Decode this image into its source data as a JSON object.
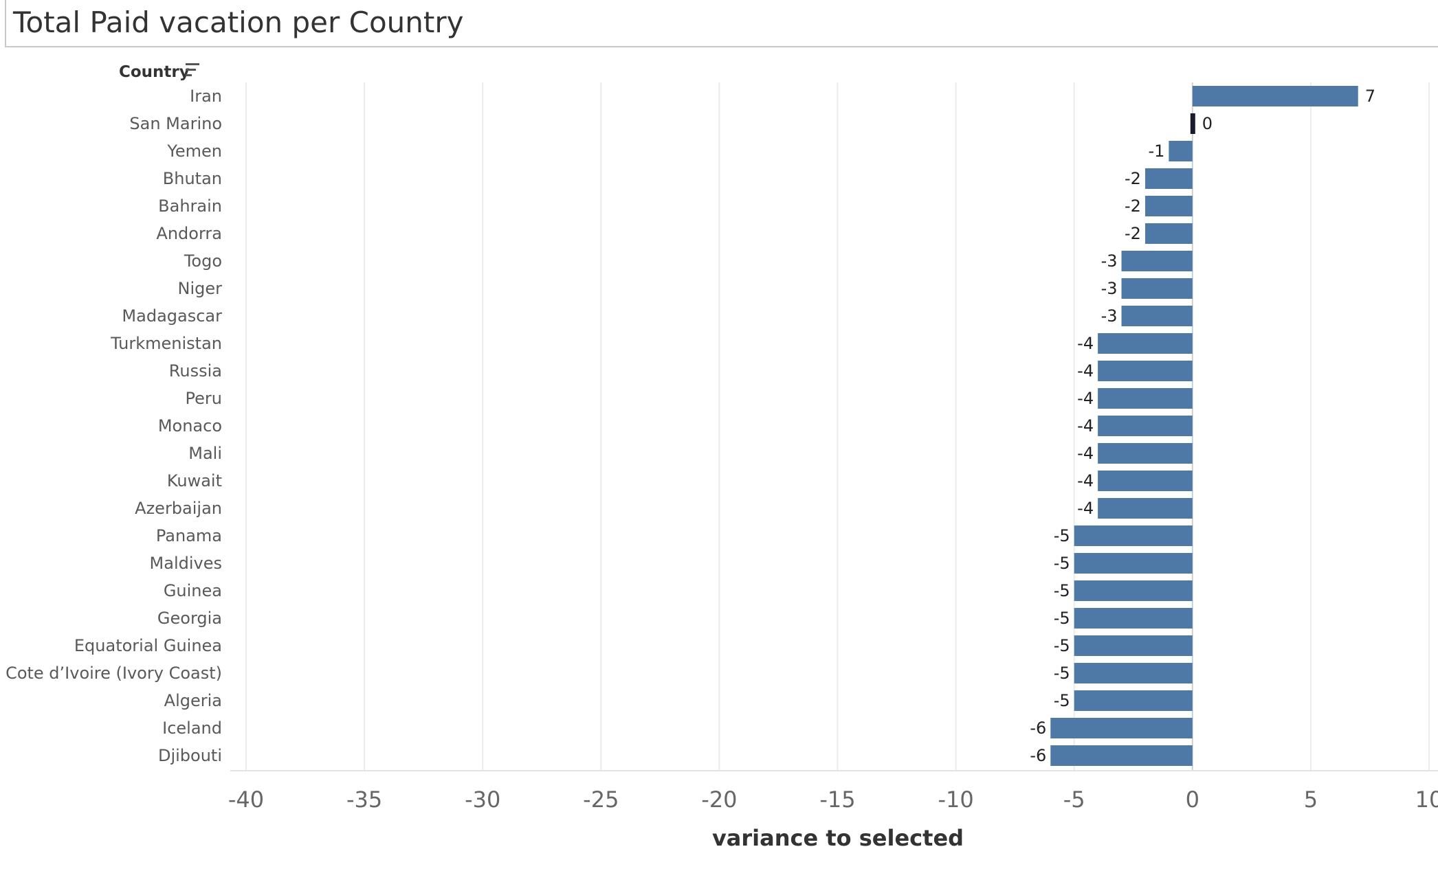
{
  "title": "Total Paid vacation per Country",
  "column_header": "Country",
  "colors": {
    "bar": "#4e79a7",
    "selected_bar": "#1a1a2e",
    "grid": "#ebebeb"
  },
  "chart_data": {
    "type": "bar",
    "orientation": "horizontal",
    "title": "Total Paid vacation per Country",
    "xlabel": "variance to selected",
    "ylabel": "Country",
    "xlim": [
      -40,
      10
    ],
    "xticks": [
      "-40",
      "-35",
      "-30",
      "-25",
      "-20",
      "-15",
      "-10",
      "-5",
      "0",
      "5",
      "10"
    ],
    "grid": true,
    "categories": [
      "Iran",
      "San Marino",
      "Yemen",
      "Bhutan",
      "Bahrain",
      "Andorra",
      "Togo",
      "Niger",
      "Madagascar",
      "Turkmenistan",
      "Russia",
      "Peru",
      "Monaco",
      "Mali",
      "Kuwait",
      "Azerbaijan",
      "Panama",
      "Maldives",
      "Guinea",
      "Georgia",
      "Equatorial Guinea",
      "Cote d’Ivoire (Ivory Coast)",
      "Algeria",
      "Iceland",
      "Djibouti"
    ],
    "values": [
      7,
      0,
      -1,
      -2,
      -2,
      -2,
      -3,
      -3,
      -3,
      -4,
      -4,
      -4,
      -4,
      -4,
      -4,
      -4,
      -5,
      -5,
      -5,
      -5,
      -5,
      -5,
      -5,
      -6,
      -6
    ],
    "selected": "San Marino"
  }
}
